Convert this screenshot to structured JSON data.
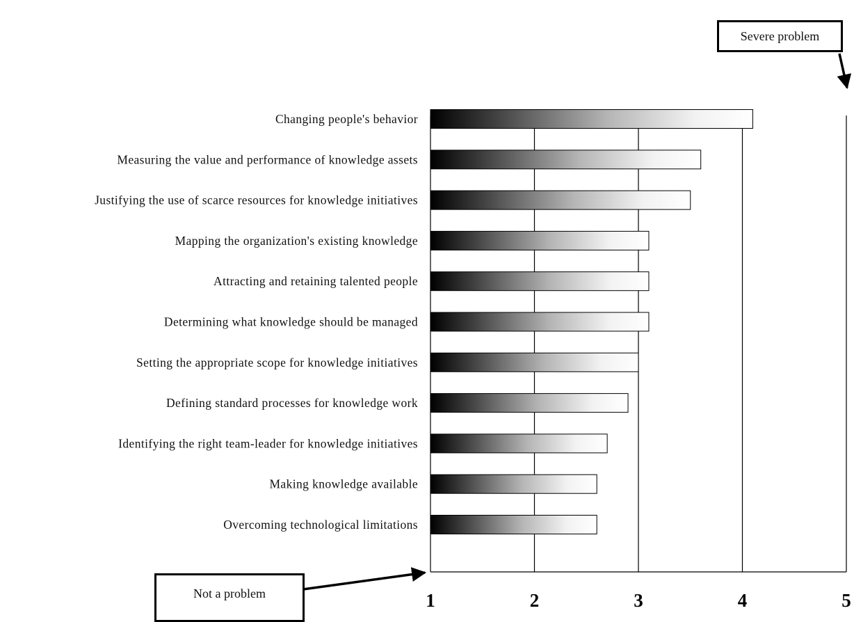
{
  "chart_data": {
    "type": "bar",
    "orientation": "horizontal",
    "categories": [
      "Changing people's behavior",
      "Measuring the value and performance of knowledge assets",
      "Justifying the use of scarce resources for knowledge initiatives",
      "Mapping the organization's existing knowledge",
      "Attracting and retaining talented people",
      "Determining what knowledge should be managed",
      "Setting the appropriate scope for knowledge initiatives",
      "Defining standard processes for knowledge work",
      "Identifying the right team-leader for knowledge initiatives",
      "Making knowledge available",
      "Overcoming technological limitations"
    ],
    "values": [
      4.1,
      3.6,
      3.5,
      3.1,
      3.1,
      3.1,
      3.0,
      2.9,
      2.7,
      2.6,
      2.6
    ],
    "xlim": [
      1,
      5
    ],
    "ticks": [
      "1",
      "2",
      "3",
      "4",
      "5"
    ],
    "grid": true,
    "bar_fill": "gradient black to white",
    "colors": {
      "bar_dark": "#000000",
      "bar_light": "#ffffff",
      "grid": "#000000"
    },
    "annotations": {
      "severe": "Severe problem",
      "none": "Not a problem"
    }
  }
}
